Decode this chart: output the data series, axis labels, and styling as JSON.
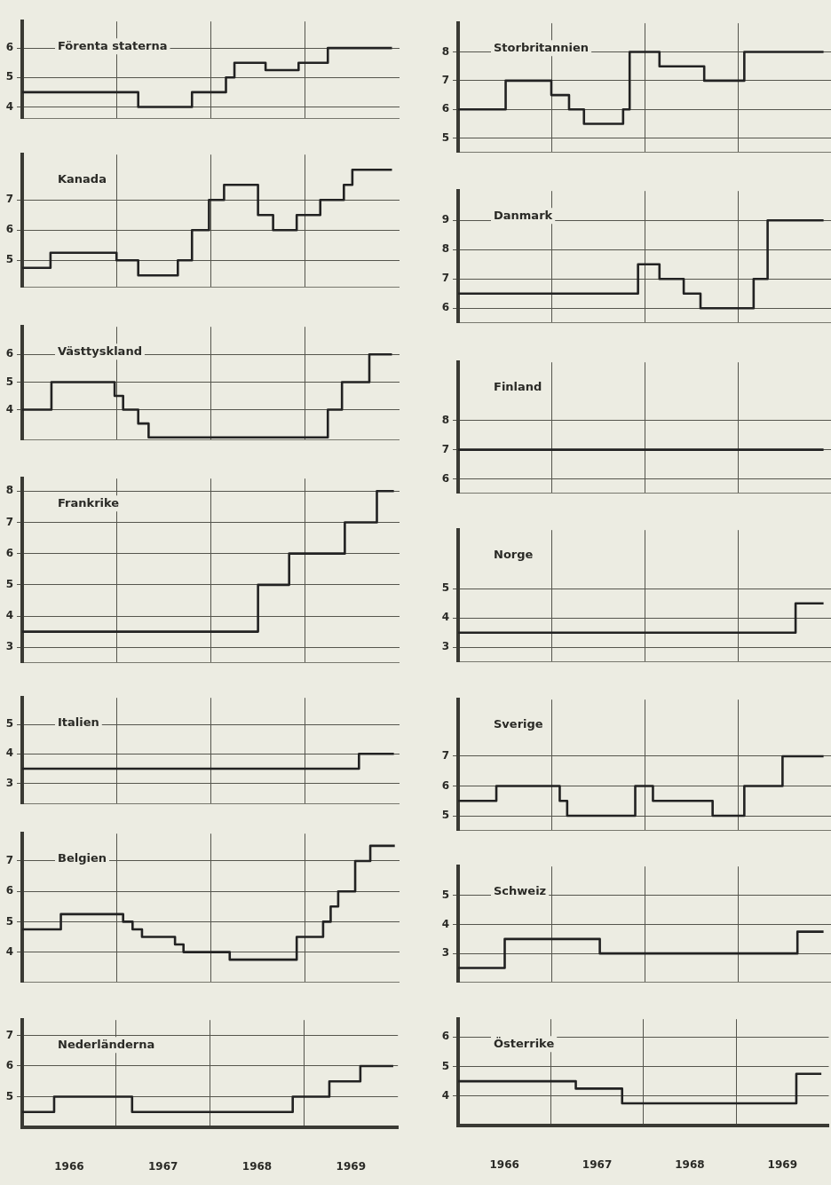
{
  "chart_data": [
    {
      "type": "step",
      "title": "Förenta staterna",
      "x": [
        1966,
        1967.23,
        1967.8,
        1968.16,
        1968.25,
        1968.58,
        1968.93,
        1969.24,
        1969.92
      ],
      "values": [
        4.5,
        4,
        4.5,
        5,
        5.5,
        5.25,
        5.5,
        6,
        6
      ],
      "color": "#222222",
      "xlim": [
        1966,
        1970
      ],
      "xticks": [
        {
          "value": 1967,
          "label": null
        },
        {
          "value": 1968,
          "label": null
        },
        {
          "value": 1969,
          "label": null
        }
      ],
      "ylim": [
        3.6,
        6.9
      ],
      "yticks": [
        4,
        5,
        6
      ],
      "grid": true,
      "tick_labels": "y"
    },
    {
      "type": "step",
      "title": "Kanada",
      "x": [
        1966,
        1966.3,
        1967,
        1967.23,
        1967.65,
        1967.8,
        1967.98,
        1968.14,
        1968.5,
        1968.66,
        1968.91,
        1969.16,
        1969.41,
        1969.5,
        1969.92
      ],
      "values": [
        4.75,
        5.25,
        5,
        4.5,
        5,
        6,
        7,
        7.5,
        6.5,
        6,
        6.5,
        7,
        7.5,
        8,
        8
      ],
      "color": "#222222",
      "xlim": [
        1966,
        1970
      ],
      "xticks": [
        {
          "value": 1967,
          "label": null
        },
        {
          "value": 1968,
          "label": null
        },
        {
          "value": 1969,
          "label": null
        }
      ],
      "ylim": [
        4.1,
        8.5
      ],
      "yticks": [
        5,
        6,
        7
      ],
      "grid": true,
      "tick_labels": "y"
    },
    {
      "type": "step",
      "title": "Västtyskland",
      "x": [
        1966,
        1966.31,
        1966.98,
        1967.07,
        1967.23,
        1967.34,
        1969.24,
        1969.39,
        1969.68,
        1969.92
      ],
      "values": [
        4,
        5,
        4.5,
        4,
        3.5,
        3,
        4,
        5,
        6,
        6
      ],
      "color": "#222222",
      "xlim": [
        1966,
        1970
      ],
      "xticks": [
        {
          "value": 1967,
          "label": null
        },
        {
          "value": 1968,
          "label": null
        },
        {
          "value": 1969,
          "label": null
        }
      ],
      "ylim": [
        2.9,
        7
      ],
      "yticks": [
        4,
        5,
        6
      ],
      "grid": true,
      "tick_labels": "y"
    },
    {
      "type": "step",
      "title": "Frankrike",
      "x": [
        1966,
        1968.5,
        1968.83,
        1969.42,
        1969.76,
        1969.94
      ],
      "values": [
        3.5,
        5,
        6,
        7,
        8,
        8
      ],
      "color": "#222222",
      "xlim": [
        1966,
        1970
      ],
      "xticks": [
        {
          "value": 1967,
          "label": null
        },
        {
          "value": 1968,
          "label": null
        },
        {
          "value": 1969,
          "label": null
        }
      ],
      "ylim": [
        2.5,
        8.4
      ],
      "yticks": [
        3,
        4,
        5,
        6,
        7,
        8
      ],
      "grid": true,
      "tick_labels": "y"
    },
    {
      "type": "step",
      "title": "Italien",
      "x": [
        1966,
        1969.57,
        1969.94
      ],
      "values": [
        3.5,
        4,
        4
      ],
      "color": "#222222",
      "xlim": [
        1966,
        1970
      ],
      "xticks": [
        {
          "value": 1967,
          "label": null
        },
        {
          "value": 1968,
          "label": null
        },
        {
          "value": 1969,
          "label": null
        }
      ],
      "ylim": [
        2.3,
        5.9
      ],
      "yticks": [
        3,
        4,
        5
      ],
      "grid": true,
      "tick_labels": "y"
    },
    {
      "type": "step",
      "title": "Belgien",
      "x": [
        1966,
        1966.41,
        1967.07,
        1967.17,
        1967.27,
        1967.62,
        1967.71,
        1968.2,
        1968.91,
        1969.19,
        1969.27,
        1969.35,
        1969.53,
        1969.69,
        1969.95
      ],
      "values": [
        4.75,
        5.25,
        5,
        4.75,
        4.5,
        4.25,
        4,
        3.75,
        4.5,
        5,
        5.5,
        6,
        7,
        7.5,
        7.5
      ],
      "color": "#222222",
      "xlim": [
        1966,
        1970
      ],
      "xticks": [
        {
          "value": 1967,
          "label": null
        },
        {
          "value": 1968,
          "label": null
        },
        {
          "value": 1969,
          "label": null
        }
      ],
      "ylim": [
        3,
        7.9
      ],
      "yticks": [
        4,
        5,
        6,
        7
      ],
      "grid": true,
      "tick_labels": "y"
    },
    {
      "type": "step",
      "title": "Nederländerna",
      "x": [
        1966,
        1966.34,
        1967.17,
        1968.88,
        1969.27,
        1969.6,
        1969.95
      ],
      "values": [
        4.5,
        5,
        4.5,
        5,
        5.5,
        6,
        6
      ],
      "color": "#222222",
      "xlim": [
        1966,
        1970
      ],
      "xticks": [
        {
          "value": 1966.5,
          "label": "1966"
        },
        {
          "value": 1967,
          "label": null
        },
        {
          "value": 1967.5,
          "label": "1967"
        },
        {
          "value": 1968,
          "label": null
        },
        {
          "value": 1968.5,
          "label": "1968"
        },
        {
          "value": 1969,
          "label": null
        },
        {
          "value": 1969.5,
          "label": "1969"
        }
      ],
      "ylim": [
        4,
        7.5
      ],
      "yticks": [
        5,
        6,
        7
      ],
      "grid": true
    },
    {
      "type": "step",
      "title": "Storbritannien",
      "x": [
        1966,
        1966.51,
        1967,
        1967.19,
        1967.35,
        1967.77,
        1967.84,
        1968.16,
        1968.64,
        1969.07,
        1969.92
      ],
      "values": [
        6,
        7,
        6.5,
        6,
        5.5,
        6,
        8,
        7.5,
        7,
        8,
        8
      ],
      "color": "#222222",
      "xlim": [
        1966,
        1970
      ],
      "xticks": [
        {
          "value": 1967,
          "label": null
        },
        {
          "value": 1968,
          "label": null
        },
        {
          "value": 1969,
          "label": null
        }
      ],
      "ylim": [
        4.5,
        9
      ],
      "yticks": [
        5,
        6,
        7,
        8
      ],
      "grid": true,
      "tick_labels": "y"
    },
    {
      "type": "step",
      "title": "Danmark",
      "x": [
        1966,
        1967.93,
        1968.16,
        1968.42,
        1968.6,
        1969.17,
        1969.32,
        1969.92
      ],
      "values": [
        6.5,
        7.5,
        7,
        6.5,
        6,
        7,
        9,
        9
      ],
      "color": "#222222",
      "xlim": [
        1966,
        1970
      ],
      "xticks": [
        {
          "value": 1967,
          "label": null
        },
        {
          "value": 1968,
          "label": null
        },
        {
          "value": 1969,
          "label": null
        }
      ],
      "ylim": [
        5.5,
        10
      ],
      "yticks": [
        6,
        7,
        8,
        9
      ],
      "grid": true,
      "tick_labels": "y"
    },
    {
      "type": "step",
      "title": "Finland",
      "x": [
        1966,
        1969.92
      ],
      "values": [
        7,
        7
      ],
      "color": "#222222",
      "xlim": [
        1966,
        1970
      ],
      "xticks": [
        {
          "value": 1967,
          "label": null
        },
        {
          "value": 1968,
          "label": null
        },
        {
          "value": 1969,
          "label": null
        }
      ],
      "ylim": [
        5.5,
        10
      ],
      "yticks": [
        6,
        7,
        8
      ],
      "grid": true,
      "tick_labels": "y"
    },
    {
      "type": "step",
      "title": "Norge",
      "x": [
        1966,
        1969.62,
        1969.92
      ],
      "values": [
        3.5,
        4.5,
        4.5
      ],
      "color": "#222222",
      "xlim": [
        1966,
        1970
      ],
      "xticks": [
        {
          "value": 1967,
          "label": null
        },
        {
          "value": 1968,
          "label": null
        },
        {
          "value": 1969,
          "label": null
        }
      ],
      "ylim": [
        2.5,
        7
      ],
      "yticks": [
        3,
        4,
        5
      ],
      "grid": true,
      "tick_labels": "y"
    },
    {
      "type": "step",
      "title": "Sverige",
      "x": [
        1966,
        1966.41,
        1967.09,
        1967.17,
        1967.9,
        1968.09,
        1968.73,
        1969.07,
        1969.48,
        1969.92
      ],
      "values": [
        5.5,
        6,
        5.5,
        5,
        6,
        5.5,
        5,
        6,
        7,
        7
      ],
      "color": "#222222",
      "xlim": [
        1966,
        1970
      ],
      "xticks": [
        {
          "value": 1967,
          "label": null
        },
        {
          "value": 1968,
          "label": null
        },
        {
          "value": 1969,
          "label": null
        }
      ],
      "ylim": [
        4.5,
        8.9
      ],
      "yticks": [
        5,
        6,
        7
      ],
      "grid": true,
      "tick_labels": "y"
    },
    {
      "type": "step",
      "title": "Schweiz",
      "x": [
        1966,
        1966.5,
        1967.52,
        1969.64,
        1969.92
      ],
      "values": [
        2.5,
        3.5,
        3,
        3.75,
        3.75
      ],
      "color": "#222222",
      "xlim": [
        1966,
        1970
      ],
      "xticks": [
        {
          "value": 1967,
          "label": null
        },
        {
          "value": 1968,
          "label": null
        },
        {
          "value": 1969,
          "label": null
        }
      ],
      "ylim": [
        2,
        6
      ],
      "yticks": [
        3,
        4,
        5
      ],
      "grid": true,
      "tick_labels": "y"
    },
    {
      "type": "step",
      "title": "Österrike",
      "x": [
        1966,
        1967.27,
        1967.77,
        1969.65,
        1969.92
      ],
      "values": [
        4.5,
        4.25,
        3.75,
        4.75,
        4.75
      ],
      "color": "#222222",
      "xlim": [
        1966,
        1970
      ],
      "xticks": [
        {
          "value": 1966.5,
          "label": "1966"
        },
        {
          "value": 1967,
          "label": null
        },
        {
          "value": 1967.5,
          "label": "1967"
        },
        {
          "value": 1968,
          "label": null
        },
        {
          "value": 1968.5,
          "label": "1968"
        },
        {
          "value": 1969,
          "label": null
        },
        {
          "value": 1969.5,
          "label": "1969"
        }
      ],
      "ylim": [
        3,
        6.6
      ],
      "yticks": [
        4,
        5,
        6
      ],
      "grid": true
    }
  ]
}
